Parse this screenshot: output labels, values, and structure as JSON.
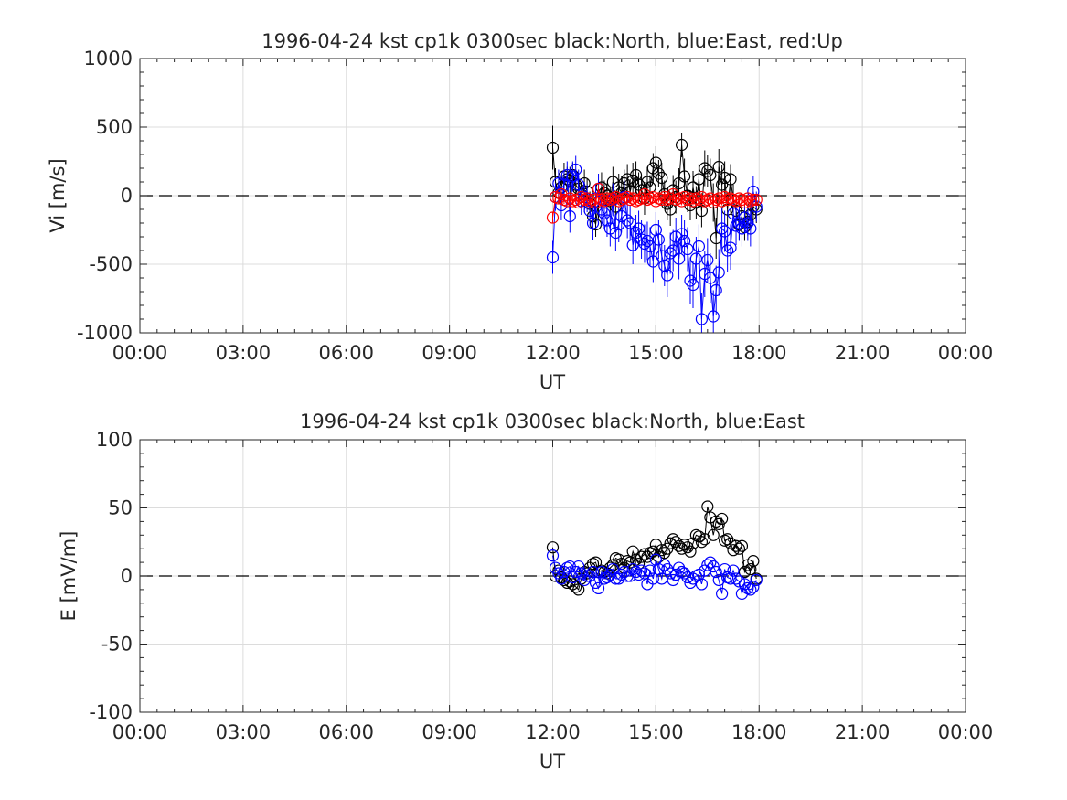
{
  "chart_data": [
    {
      "type": "scatter",
      "title": "1996-04-24 kst cp1k 0300sec black:North, blue:East, red:Up",
      "xlabel": "UT",
      "ylabel": "Vi [m/s]",
      "xlim": [
        0,
        24
      ],
      "ylim": [
        -1000,
        1000
      ],
      "xtick_labels": [
        "00:00",
        "03:00",
        "06:00",
        "09:00",
        "12:00",
        "15:00",
        "18:00",
        "21:00",
        "00:00"
      ],
      "ytick_labels": [
        "1000",
        "500",
        "0",
        "-500",
        "-1000"
      ],
      "ytick_values": [
        1000,
        500,
        0,
        -500,
        -1000
      ],
      "zero_line": true,
      "grid": true,
      "error_bars": true,
      "x": [
        12.0,
        12.08,
        12.17,
        12.25,
        12.33,
        12.42,
        12.5,
        12.58,
        12.67,
        12.75,
        12.83,
        12.92,
        13.0,
        13.08,
        13.17,
        13.25,
        13.33,
        13.42,
        13.5,
        13.58,
        13.67,
        13.75,
        13.83,
        13.92,
        14.0,
        14.08,
        14.17,
        14.25,
        14.33,
        14.42,
        14.5,
        14.58,
        14.67,
        14.75,
        14.83,
        14.92,
        15.0,
        15.08,
        15.17,
        15.25,
        15.33,
        15.42,
        15.5,
        15.58,
        15.67,
        15.75,
        15.83,
        15.92,
        16.0,
        16.08,
        16.17,
        16.25,
        16.33,
        16.42,
        16.5,
        16.58,
        16.67,
        16.75,
        16.83,
        16.92,
        17.0,
        17.08,
        17.17,
        17.25,
        17.33,
        17.42,
        17.5,
        17.58,
        17.67,
        17.75,
        17.83,
        17.92
      ],
      "series": [
        {
          "name": "North",
          "color": "#000000",
          "values": [
            350,
            100,
            20,
            60,
            140,
            120,
            110,
            150,
            80,
            50,
            10,
            90,
            30,
            -60,
            -150,
            -210,
            -50,
            60,
            20,
            0,
            -40,
            100,
            -80,
            60,
            20,
            90,
            120,
            30,
            110,
            150,
            80,
            40,
            -20,
            100,
            60,
            200,
            240,
            160,
            130,
            10,
            -60,
            -100,
            40,
            -10,
            90,
            370,
            140,
            0,
            -70,
            60,
            -50,
            120,
            -110,
            200,
            180,
            150,
            -50,
            -310,
            210,
            80,
            130,
            -100,
            120,
            -30,
            -110,
            -210,
            -150,
            -230,
            -190,
            -140,
            -80,
            -100
          ],
          "error": [
            160,
            100,
            80,
            90,
            100,
            90,
            100,
            90,
            100,
            90,
            90,
            100,
            90,
            90,
            110,
            90,
            90,
            110,
            90,
            90,
            100,
            110,
            90,
            100,
            120,
            100,
            110,
            90,
            130,
            100,
            90,
            100,
            120,
            110,
            90,
            110,
            120,
            100,
            110,
            100,
            120,
            120,
            110,
            120,
            110,
            90,
            130,
            120,
            110,
            120,
            120,
            110,
            120,
            130,
            120,
            120,
            140,
            150,
            130,
            140,
            120,
            120,
            110,
            110,
            100,
            110,
            100,
            100,
            100,
            110,
            100,
            100
          ]
        },
        {
          "name": "East",
          "color": "#0000ff",
          "values": [
            -450,
            -10,
            90,
            -70,
            80,
            150,
            -150,
            140,
            190,
            80,
            -40,
            -10,
            -20,
            -110,
            -200,
            -20,
            50,
            -100,
            -130,
            -180,
            -240,
            -30,
            -270,
            -210,
            -150,
            -10,
            -180,
            -200,
            -360,
            -270,
            -240,
            -320,
            -350,
            -330,
            -370,
            -480,
            -250,
            -320,
            -440,
            -510,
            -580,
            -420,
            -400,
            -300,
            -460,
            -280,
            -330,
            -390,
            -620,
            -650,
            -460,
            -370,
            -900,
            -570,
            -470,
            -600,
            -880,
            -690,
            -560,
            -240,
            -260,
            -400,
            -380,
            -130,
            -220,
            -200,
            -240,
            -160,
            -200,
            -240,
            30,
            -80
          ],
          "error": [
            120,
            100,
            100,
            110,
            110,
            100,
            120,
            110,
            100,
            110,
            100,
            110,
            100,
            110,
            120,
            110,
            110,
            120,
            110,
            120,
            130,
            120,
            130,
            130,
            120,
            120,
            130,
            130,
            140,
            130,
            130,
            140,
            140,
            140,
            140,
            150,
            130,
            140,
            150,
            150,
            160,
            150,
            150,
            140,
            150,
            140,
            150,
            160,
            170,
            170,
            160,
            160,
            190,
            170,
            160,
            180,
            190,
            180,
            170,
            150,
            150,
            160,
            160,
            130,
            140,
            130,
            130,
            120,
            130,
            130,
            110,
            110
          ]
        },
        {
          "name": "Up",
          "color": "#ff0000",
          "values": [
            -160,
            -10,
            -20,
            10,
            -30,
            -40,
            -20,
            -40,
            -30,
            -50,
            -10,
            -30,
            -20,
            -40,
            -30,
            -50,
            50,
            -30,
            -40,
            -20,
            -30,
            -20,
            -10,
            -40,
            -30,
            -20,
            -10,
            -30,
            -20,
            -40,
            -30,
            -20,
            10,
            -30,
            -20,
            -10,
            -40,
            -20,
            -30,
            -10,
            -30,
            -20,
            10,
            -30,
            -20,
            -40,
            -10,
            -30,
            -20,
            -40,
            -20,
            -30,
            -10,
            -40,
            -30,
            -20,
            -50,
            -30,
            -20,
            -40,
            -10,
            -30,
            -20,
            -30,
            -40,
            -20,
            -30,
            -50,
            -20,
            -40,
            -30,
            -30
          ],
          "error": [
            40,
            30,
            30,
            30,
            30,
            30,
            30,
            30,
            30,
            30,
            30,
            30,
            30,
            30,
            30,
            30,
            30,
            30,
            30,
            30,
            30,
            30,
            30,
            30,
            30,
            30,
            30,
            30,
            30,
            30,
            30,
            30,
            30,
            30,
            30,
            30,
            30,
            30,
            30,
            30,
            30,
            30,
            30,
            30,
            30,
            30,
            30,
            30,
            30,
            30,
            30,
            30,
            30,
            30,
            30,
            30,
            30,
            30,
            30,
            30,
            30,
            30,
            30,
            30,
            30,
            30,
            30,
            30,
            30,
            30,
            30,
            30
          ]
        }
      ]
    },
    {
      "type": "scatter",
      "title": "1996-04-24 kst cp1k 0300sec black:North, blue:East",
      "xlabel": "UT",
      "ylabel": "E [mV/m]",
      "xlim": [
        0,
        24
      ],
      "ylim": [
        -100,
        100
      ],
      "xtick_labels": [
        "00:00",
        "03:00",
        "06:00",
        "09:00",
        "12:00",
        "15:00",
        "18:00",
        "21:00",
        "00:00"
      ],
      "ytick_labels": [
        "100",
        "50",
        "0",
        "-50",
        "-100"
      ],
      "ytick_values": [
        100,
        50,
        0,
        -50,
        -100
      ],
      "zero_line": true,
      "grid": true,
      "error_bars": false,
      "x": [
        12.0,
        12.08,
        12.17,
        12.25,
        12.33,
        12.42,
        12.5,
        12.58,
        12.67,
        12.75,
        12.83,
        12.92,
        13.0,
        13.08,
        13.17,
        13.25,
        13.33,
        13.42,
        13.5,
        13.58,
        13.67,
        13.75,
        13.83,
        13.92,
        14.0,
        14.08,
        14.17,
        14.25,
        14.33,
        14.42,
        14.5,
        14.58,
        14.67,
        14.75,
        14.83,
        14.92,
        15.0,
        15.08,
        15.17,
        15.25,
        15.33,
        15.42,
        15.5,
        15.58,
        15.67,
        15.75,
        15.83,
        15.92,
        16.0,
        16.08,
        16.17,
        16.25,
        16.33,
        16.42,
        16.5,
        16.58,
        16.67,
        16.75,
        16.83,
        16.92,
        17.0,
        17.08,
        17.17,
        17.25,
        17.33,
        17.42,
        17.5,
        17.58,
        17.67,
        17.75,
        17.83,
        17.92
      ],
      "series": [
        {
          "name": "North",
          "color": "#000000",
          "values": [
            21,
            0,
            4,
            -1,
            -3,
            -5,
            -4,
            -6,
            -8,
            -10,
            -2,
            3,
            2,
            6,
            9,
            10,
            3,
            4,
            3,
            2,
            6,
            8,
            13,
            12,
            9,
            6,
            11,
            10,
            18,
            12,
            9,
            14,
            16,
            14,
            17,
            18,
            23,
            14,
            19,
            17,
            20,
            24,
            27,
            25,
            22,
            20,
            23,
            21,
            18,
            24,
            30,
            29,
            25,
            27,
            51,
            43,
            30,
            40,
            38,
            42,
            26,
            27,
            24,
            19,
            22,
            20,
            22,
            3,
            8,
            5,
            11,
            -2
          ],
          "error": [
            0,
            0,
            0,
            0,
            0,
            0,
            0,
            0,
            0,
            0,
            0,
            0,
            0,
            0,
            0,
            0,
            0,
            0,
            0,
            0,
            0,
            0,
            0,
            0,
            0,
            0,
            0,
            0,
            0,
            0,
            0,
            0,
            0,
            0,
            0,
            0,
            0,
            0,
            0,
            0,
            0,
            0,
            0,
            0,
            0,
            0,
            0,
            0,
            0,
            0,
            0,
            0,
            0,
            0,
            0,
            0,
            0,
            0,
            0,
            0,
            0,
            0,
            0,
            0,
            0,
            0,
            0,
            0,
            0,
            0,
            0,
            0
          ]
        },
        {
          "name": "East",
          "color": "#0000ff",
          "values": [
            15,
            6,
            2,
            -2,
            3,
            6,
            7,
            -1,
            3,
            7,
            2,
            -3,
            0,
            0,
            3,
            -5,
            -9,
            3,
            -2,
            -1,
            1,
            5,
            -2,
            -2,
            1,
            3,
            0,
            0,
            5,
            3,
            1,
            4,
            2,
            -6,
            4,
            -2,
            12,
            5,
            -2,
            8,
            5,
            2,
            -3,
            1,
            6,
            3,
            2,
            -1,
            -5,
            -2,
            0,
            1,
            -6,
            4,
            8,
            10,
            7,
            3,
            -3,
            -13,
            5,
            -1,
            -2,
            4,
            -2,
            -4,
            -13,
            -6,
            -9,
            -10,
            -8,
            -3
          ],
          "error": [
            0,
            0,
            0,
            0,
            0,
            0,
            0,
            0,
            0,
            0,
            0,
            0,
            0,
            0,
            0,
            0,
            0,
            0,
            0,
            0,
            0,
            0,
            0,
            0,
            0,
            0,
            0,
            0,
            0,
            0,
            0,
            0,
            0,
            0,
            0,
            0,
            0,
            0,
            0,
            0,
            0,
            0,
            0,
            0,
            0,
            0,
            0,
            0,
            0,
            0,
            0,
            0,
            0,
            0,
            0,
            0,
            0,
            0,
            0,
            0,
            0,
            0,
            0,
            0,
            0,
            0,
            0,
            0,
            0,
            0,
            0,
            0
          ]
        }
      ]
    }
  ]
}
